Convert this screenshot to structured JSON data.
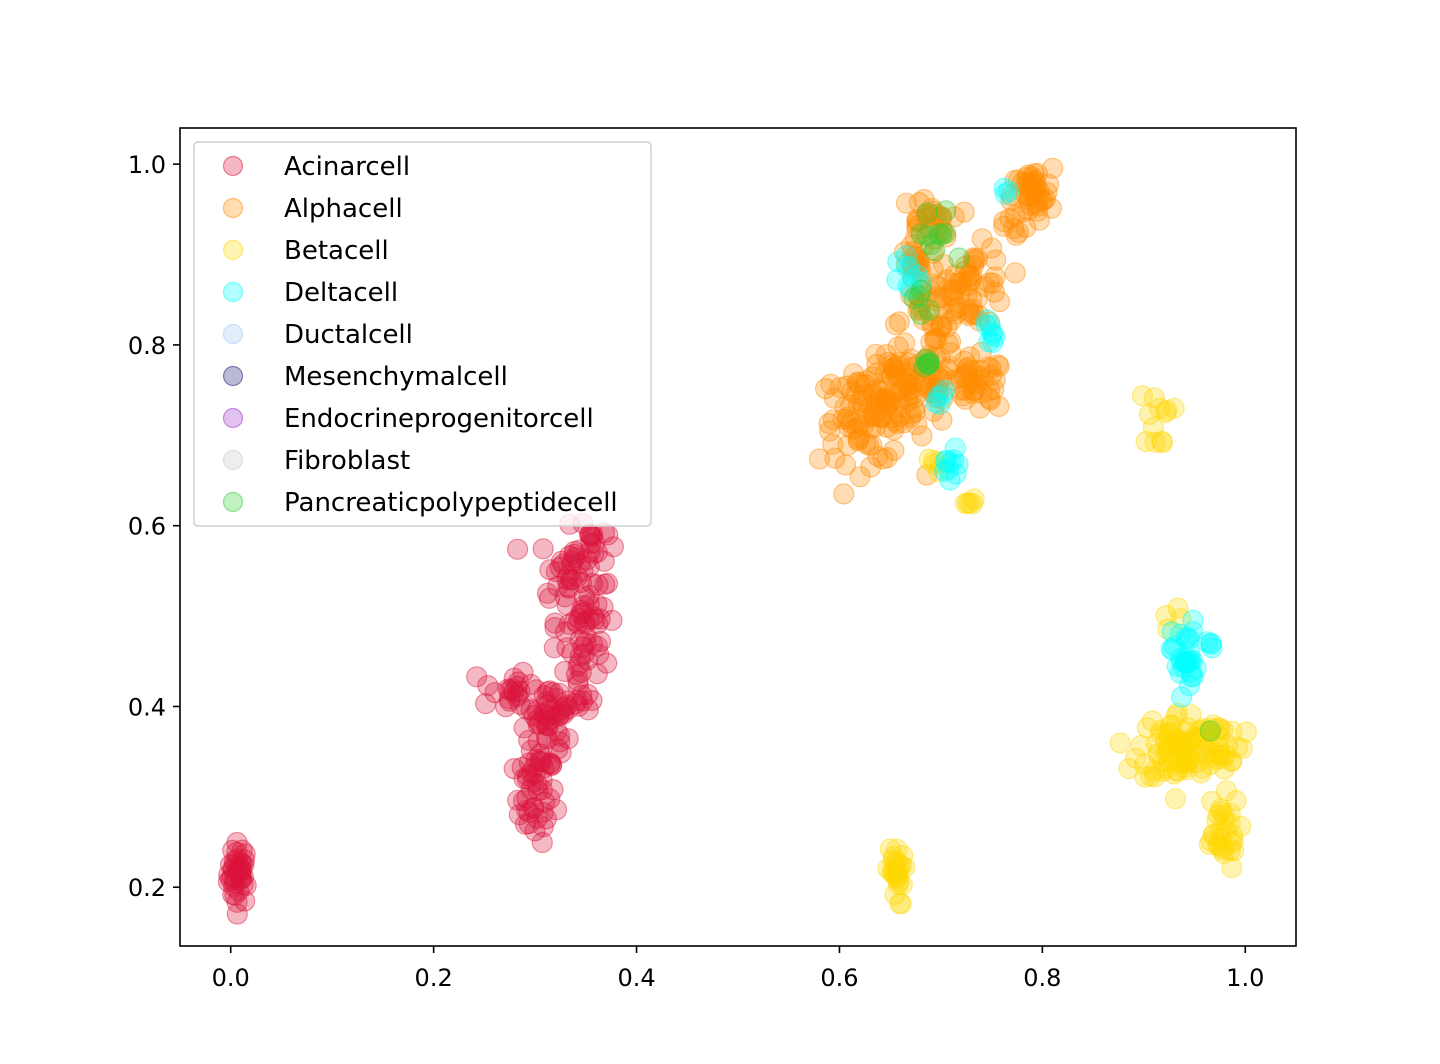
{
  "chart_data": {
    "type": "scatter",
    "title": "",
    "xlabel": "",
    "ylabel": "",
    "xlim": [
      -0.05,
      1.05
    ],
    "ylim": [
      0.135,
      1.04
    ],
    "xticks": [
      0.0,
      0.2,
      0.4,
      0.6,
      0.8,
      1.0
    ],
    "yticks": [
      0.2,
      0.4,
      0.6,
      0.8,
      1.0
    ],
    "xtick_labels": [
      "0.0",
      "0.2",
      "0.4",
      "0.6",
      "0.8",
      "1.0"
    ],
    "ytick_labels": [
      "0.2",
      "0.4",
      "0.6",
      "0.8",
      "1.0"
    ],
    "grid": false,
    "legend_position": "upper-left",
    "marker_alpha": 0.3,
    "series": [
      {
        "name": "Acinarcell",
        "color": "#dc143c",
        "clusters": [
          {
            "cx": 0.008,
            "cy": 0.215,
            "sx": 0.005,
            "sy": 0.017,
            "n": 40
          },
          {
            "cx": 0.3,
            "cy": 0.3,
            "sx": 0.01,
            "sy": 0.025,
            "n": 40
          },
          {
            "cx": 0.31,
            "cy": 0.37,
            "sx": 0.012,
            "sy": 0.025,
            "n": 35
          },
          {
            "cx": 0.27,
            "cy": 0.42,
            "sx": 0.012,
            "sy": 0.012,
            "n": 18
          },
          {
            "cx": 0.345,
            "cy": 0.45,
            "sx": 0.015,
            "sy": 0.04,
            "n": 40
          },
          {
            "cx": 0.335,
            "cy": 0.545,
            "sx": 0.015,
            "sy": 0.025,
            "n": 40
          },
          {
            "cx": 0.355,
            "cy": 0.58,
            "sx": 0.008,
            "sy": 0.012,
            "n": 15
          },
          {
            "cx": 0.355,
            "cy": 0.51,
            "sx": 0.008,
            "sy": 0.015,
            "n": 15
          },
          {
            "cx": 0.32,
            "cy": 0.4,
            "sx": 0.012,
            "sy": 0.01,
            "n": 15
          }
        ]
      },
      {
        "name": "Alphacell",
        "color": "#ff8c00",
        "clusters": [
          {
            "cx": 0.63,
            "cy": 0.72,
            "sx": 0.025,
            "sy": 0.025,
            "n": 90
          },
          {
            "cx": 0.67,
            "cy": 0.76,
            "sx": 0.025,
            "sy": 0.02,
            "n": 60
          },
          {
            "cx": 0.735,
            "cy": 0.755,
            "sx": 0.015,
            "sy": 0.015,
            "n": 40
          },
          {
            "cx": 0.73,
            "cy": 0.865,
            "sx": 0.018,
            "sy": 0.022,
            "n": 55
          },
          {
            "cx": 0.69,
            "cy": 0.82,
            "sx": 0.015,
            "sy": 0.03,
            "n": 35
          },
          {
            "cx": 0.685,
            "cy": 0.935,
            "sx": 0.012,
            "sy": 0.015,
            "n": 30
          },
          {
            "cx": 0.79,
            "cy": 0.965,
            "sx": 0.01,
            "sy": 0.015,
            "n": 40
          },
          {
            "cx": 0.675,
            "cy": 0.89,
            "sx": 0.01,
            "sy": 0.015,
            "n": 15
          },
          {
            "cx": 0.77,
            "cy": 0.93,
            "sx": 0.008,
            "sy": 0.01,
            "n": 8
          }
        ]
      },
      {
        "name": "Betacell",
        "color": "#ffd700",
        "clusters": [
          {
            "cx": 0.935,
            "cy": 0.355,
            "sx": 0.02,
            "sy": 0.02,
            "n": 80
          },
          {
            "cx": 0.975,
            "cy": 0.36,
            "sx": 0.012,
            "sy": 0.015,
            "n": 25
          },
          {
            "cx": 0.975,
            "cy": 0.26,
            "sx": 0.01,
            "sy": 0.02,
            "n": 30
          },
          {
            "cx": 0.655,
            "cy": 0.215,
            "sx": 0.004,
            "sy": 0.018,
            "n": 25
          },
          {
            "cx": 0.912,
            "cy": 0.715,
            "sx": 0.008,
            "sy": 0.015,
            "n": 12
          },
          {
            "cx": 0.73,
            "cy": 0.625,
            "sx": 0.003,
            "sy": 0.008,
            "n": 5
          },
          {
            "cx": 0.692,
            "cy": 0.67,
            "sx": 0.004,
            "sy": 0.008,
            "n": 5
          },
          {
            "cx": 0.93,
            "cy": 0.495,
            "sx": 0.005,
            "sy": 0.01,
            "n": 4
          }
        ]
      },
      {
        "name": "Deltacell",
        "color": "#00ffff",
        "clusters": [
          {
            "cx": 0.94,
            "cy": 0.455,
            "sx": 0.006,
            "sy": 0.02,
            "n": 30
          },
          {
            "cx": 0.965,
            "cy": 0.47,
            "sx": 0.004,
            "sy": 0.006,
            "n": 4
          },
          {
            "cx": 0.71,
            "cy": 0.66,
            "sx": 0.005,
            "sy": 0.012,
            "n": 10
          },
          {
            "cx": 0.75,
            "cy": 0.815,
            "sx": 0.005,
            "sy": 0.008,
            "n": 8
          },
          {
            "cx": 0.67,
            "cy": 0.87,
            "sx": 0.006,
            "sy": 0.015,
            "n": 10
          },
          {
            "cx": 0.7,
            "cy": 0.735,
            "sx": 0.004,
            "sy": 0.008,
            "n": 5
          },
          {
            "cx": 0.765,
            "cy": 0.97,
            "sx": 0.004,
            "sy": 0.004,
            "n": 3
          }
        ]
      },
      {
        "name": "Ductalcell",
        "color": "#a0c8f0",
        "clusters": []
      },
      {
        "name": "Mesenchymalcell",
        "color": "#191970",
        "clusters": []
      },
      {
        "name": "Endocrineprogenitorcell",
        "color": "#9932cc",
        "clusters": []
      },
      {
        "name": "Fibroblast",
        "color": "#c8c8c8",
        "clusters": []
      },
      {
        "name": "Pancreaticpolypeptidecell",
        "color": "#32cd32",
        "clusters": [
          {
            "cx": 0.695,
            "cy": 0.915,
            "sx": 0.01,
            "sy": 0.02,
            "n": 10
          },
          {
            "cx": 0.68,
            "cy": 0.85,
            "sx": 0.008,
            "sy": 0.01,
            "n": 5
          },
          {
            "cx": 0.69,
            "cy": 0.78,
            "sx": 0.008,
            "sy": 0.006,
            "n": 6
          },
          {
            "cx": 0.965,
            "cy": 0.375,
            "sx": 0.002,
            "sy": 0.002,
            "n": 1
          }
        ]
      }
    ]
  }
}
